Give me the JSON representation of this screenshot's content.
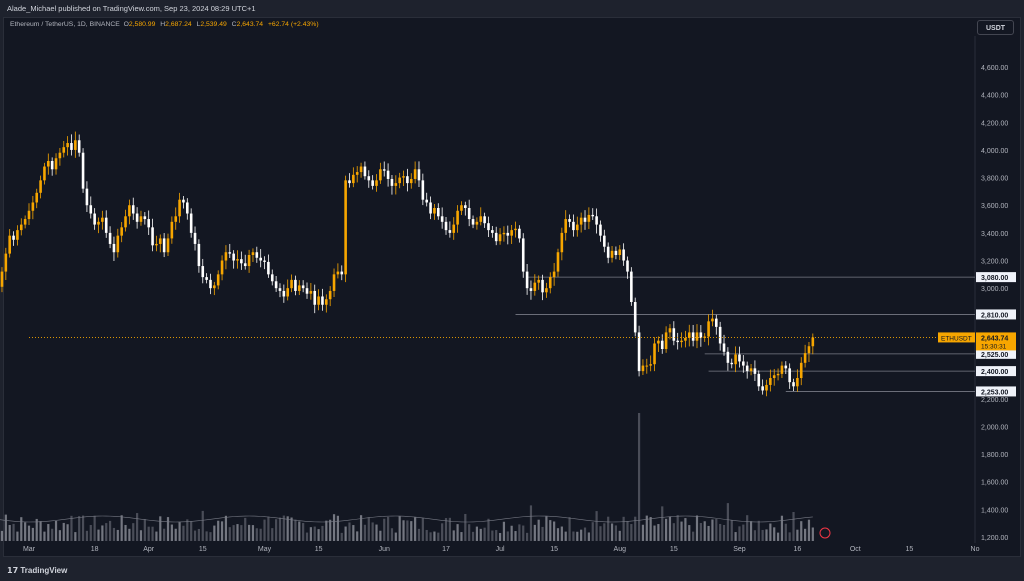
{
  "publisher": "Alade_Michael published on TradingView.com, Sep 23, 2024 08:29 UTC+1",
  "symbol_line": "Ethereum / TetherUS, 1D, BINANCE",
  "ohlc": {
    "o_label": "O",
    "o": "2,580.99",
    "h_label": "H",
    "h": "2,687.24",
    "l_label": "L",
    "l": "2,539.49",
    "c_label": "C",
    "c": "2,643.74",
    "change": "+62.74 (+2.43%)"
  },
  "currency_button": "USDT",
  "brand": "TradingView",
  "colors": {
    "up": "#f7a600",
    "down": "#ffffff",
    "bg": "#131722",
    "line": "#787b86",
    "price_tag": "#f7a600"
  },
  "price_tag": {
    "symbol": "ETHUSDT",
    "price": "2,643.74",
    "countdown": "15:30:31"
  },
  "chart_data": {
    "type": "candlestick",
    "x_ticks": [
      "Mar",
      "18",
      "Apr",
      "15",
      "May",
      "15",
      "Jun",
      "17",
      "Jul",
      "15",
      "Aug",
      "15",
      "Sep",
      "16",
      "Oct",
      "15",
      "No"
    ],
    "y_ticks": [
      "4,600.00",
      "4,400.00",
      "4,200.00",
      "4,000.00",
      "3,800.00",
      "3,600.00",
      "3,400.00",
      "3,200.00",
      "3,000.00",
      "2,800.00",
      "2,600.00",
      "2,400.00",
      "2,200.00",
      "2,000.00",
      "1,800.00",
      "1,600.00",
      "1,400.00",
      "1,200.00"
    ],
    "ylim": [
      1200,
      4720
    ],
    "levels": [
      {
        "label": "3,080.00",
        "value": 3080,
        "from": "2024-07-08"
      },
      {
        "label": "2,810.00",
        "value": 2810,
        "from": "2024-07-05"
      },
      {
        "label": "2,525.00",
        "value": 2525,
        "from": "2024-08-23"
      },
      {
        "label": "2,400.00",
        "value": 2400,
        "from": "2024-08-24"
      },
      {
        "label": "2,253.00",
        "value": 2253,
        "from": "2024-09-13"
      }
    ],
    "close_series": [
      2900,
      3010,
      3120,
      3250,
      3380,
      3350,
      3420,
      3460,
      3500,
      3560,
      3620,
      3690,
      3780,
      3880,
      3920,
      3860,
      3940,
      3980,
      4020,
      4050,
      4000,
      4070,
      3980,
      3720,
      3600,
      3540,
      3460,
      3480,
      3510,
      3400,
      3320,
      3260,
      3380,
      3440,
      3520,
      3600,
      3540,
      3480,
      3520,
      3500,
      3440,
      3310,
      3320,
      3360,
      3260,
      3360,
      3480,
      3520,
      3640,
      3620,
      3540,
      3400,
      3320,
      3160,
      3080,
      3060,
      3000,
      3020,
      3100,
      3200,
      3260,
      3250,
      3200,
      3210,
      3180,
      3160,
      3240,
      3260,
      3220,
      3200,
      3190,
      3100,
      3050,
      3000,
      2980,
      2940,
      3000,
      3060,
      2980,
      3020,
      3000,
      2960,
      2980,
      2880,
      2940,
      2880,
      2920,
      2980,
      3100,
      3120,
      3100,
      3780,
      3760,
      3820,
      3840,
      3880,
      3810,
      3780,
      3740,
      3780,
      3860,
      3850,
      3790,
      3740,
      3760,
      3800,
      3810,
      3760,
      3790,
      3860,
      3780,
      3640,
      3620,
      3540,
      3580,
      3520,
      3480,
      3420,
      3400,
      3460,
      3560,
      3600,
      3580,
      3500,
      3460,
      3480,
      3520,
      3470,
      3420,
      3400,
      3340,
      3390,
      3400,
      3380,
      3420,
      3430,
      3360,
      3120,
      3000,
      2980,
      3040,
      3060,
      2970,
      3000,
      3080,
      3120,
      3260,
      3400,
      3500,
      3480,
      3420,
      3460,
      3510,
      3480,
      3530,
      3520,
      3460,
      3380,
      3300,
      3220,
      3270,
      3240,
      3280,
      3200,
      3120,
      2900,
      2680,
      2400,
      2440,
      2440,
      2450,
      2600,
      2620,
      2560,
      2680,
      2710,
      2620,
      2610,
      2620,
      2640,
      2680,
      2620,
      2680,
      2640,
      2650,
      2760,
      2780,
      2720,
      2600,
      2540,
      2460,
      2450,
      2520,
      2470,
      2440,
      2400,
      2420,
      2380,
      2290,
      2260,
      2300,
      2350,
      2370,
      2380,
      2440,
      2420,
      2320,
      2290,
      2350,
      2460,
      2530,
      2580,
      2643.74
    ],
    "last": 2643.74
  }
}
